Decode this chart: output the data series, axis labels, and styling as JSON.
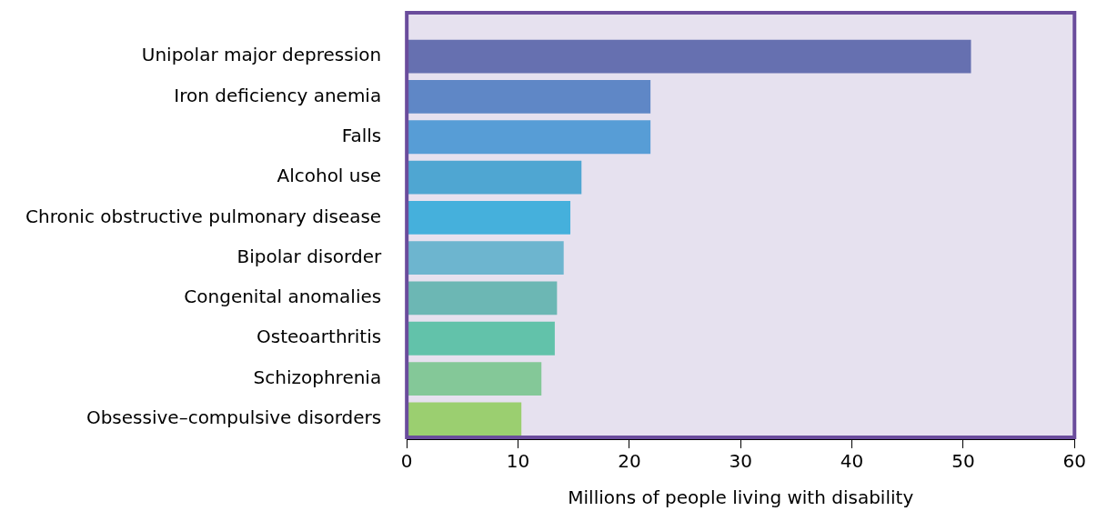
{
  "chart_data": {
    "type": "bar",
    "orientation": "horizontal",
    "xlabel": "Millions of people living with disability",
    "categories": [
      "Unipolar major depression",
      "Iron deficiency anemia",
      "Falls",
      "Alcohol use",
      "Chronic obstructive pulmonary disease",
      "Bipolar disorder",
      "Congenital anomalies",
      "Osteoarthritis",
      "Schizophrenia",
      "Obsessive–compulsive disorders"
    ],
    "values": [
      50.7,
      21.9,
      21.9,
      15.7,
      14.7,
      14.1,
      13.5,
      13.3,
      12.1,
      10.3
    ],
    "colors": [
      "#6670b0",
      "#5f87c6",
      "#579dd6",
      "#4fa6d2",
      "#45b0dc",
      "#6db5cf",
      "#6cb7b4",
      "#62c2aa",
      "#84c898",
      "#9bcf70"
    ],
    "xlim": [
      0,
      60
    ],
    "xticks": [
      0,
      10,
      20,
      30,
      40,
      50,
      60
    ],
    "legend": false
  }
}
